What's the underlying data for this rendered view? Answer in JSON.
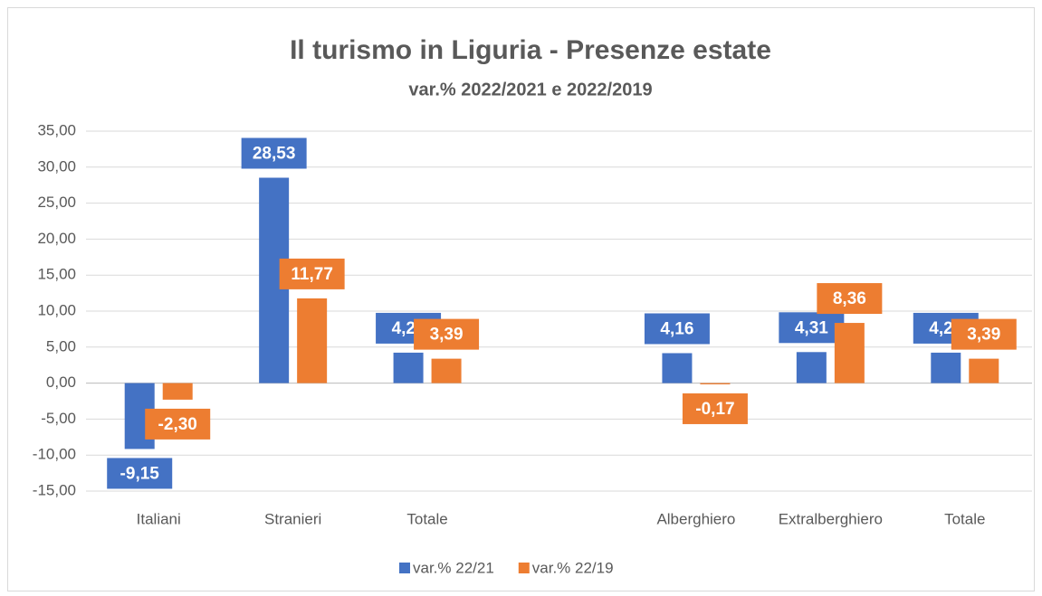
{
  "chart_data": {
    "type": "bar",
    "title": "Il turismo in Liguria - Presenze estate",
    "subtitle": "var.% 2022/2021 e 2022/2019",
    "categories": [
      "Italiani",
      "Stranieri",
      "Totale",
      null,
      "Alberghiero",
      "Extralberghiero",
      "Totale"
    ],
    "series": [
      {
        "name": "var.% 22/21",
        "color": "#4472c4",
        "values": [
          -9.15,
          28.53,
          4.23,
          null,
          4.16,
          4.31,
          4.23
        ],
        "value_labels": [
          "-9,15",
          "28,53",
          "4,23",
          null,
          "4,16",
          "4,31",
          "4,23"
        ]
      },
      {
        "name": "var.% 22/19",
        "color": "#ed7d31",
        "values": [
          -2.3,
          11.77,
          3.39,
          null,
          -0.17,
          8.36,
          3.39
        ],
        "value_labels": [
          "-2,30",
          "11,77",
          "3,39",
          null,
          "-0,17",
          "8,36",
          "3,39"
        ]
      }
    ],
    "ylim": [
      -15,
      35
    ],
    "yticks": [
      {
        "value": -15,
        "label": "-15,00"
      },
      {
        "value": -10,
        "label": "-10,00"
      },
      {
        "value": -5,
        "label": "-5,00"
      },
      {
        "value": 0,
        "label": "0,00"
      },
      {
        "value": 5,
        "label": "5,00"
      },
      {
        "value": 10,
        "label": "10,00"
      },
      {
        "value": 15,
        "label": "15,00"
      },
      {
        "value": 20,
        "label": "20,00"
      },
      {
        "value": 25,
        "label": "25,00"
      },
      {
        "value": 30,
        "label": "30,00"
      },
      {
        "value": 35,
        "label": "35,00"
      }
    ],
    "grid": true,
    "legend": "bottom"
  }
}
